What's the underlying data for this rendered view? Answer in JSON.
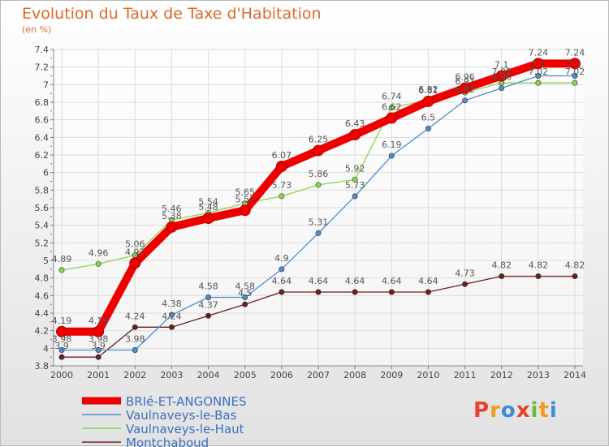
{
  "chart_data": {
    "type": "line",
    "title": "Evolution du Taux de Taxe d'Habitation",
    "unit_label": "(en %)",
    "x": [
      "2000",
      "2001",
      "2002",
      "2003",
      "2004",
      "2005",
      "2006",
      "2007",
      "2008",
      "2009",
      "2010",
      "2011",
      "2012",
      "2013",
      "2014"
    ],
    "ylim": [
      3.8,
      7.4
    ],
    "yticks": [
      "3.8",
      "4",
      "4.2",
      "4.4",
      "4.6",
      "4.8",
      "5",
      "5.2",
      "5.4",
      "5.6",
      "5.8",
      "6",
      "6.2",
      "6.4",
      "6.6",
      "6.8",
      "7",
      "7.2",
      "7.4"
    ],
    "grid": true,
    "legend_position": "bottom-left",
    "series": [
      {
        "name": "BRIé-ET-ANGONNES",
        "color": "#ee0000",
        "values": [
          4.19,
          4.19,
          4.97,
          5.38,
          5.48,
          5.57,
          6.07,
          6.25,
          6.43,
          6.62,
          6.81,
          6.96,
          7.1,
          7.24,
          7.24
        ],
        "labels": [
          "4.19",
          "4.19",
          "4.97",
          "5.38",
          "5.48",
          "5.57",
          "6.07",
          "6.25",
          "6.43",
          "6.62",
          "6.81",
          "6.96",
          "7.1",
          "7.24",
          "7.24"
        ]
      },
      {
        "name": "Vaulnaveys-le-Bas",
        "color": "#4f8cc9",
        "values": [
          3.98,
          3.98,
          3.98,
          4.38,
          4.58,
          4.58,
          4.9,
          5.31,
          5.73,
          6.19,
          6.5,
          6.82,
          6.96,
          7.1,
          7.1
        ],
        "labels": [
          "3.98",
          "3.98",
          "3.98",
          "4.38",
          "4.58",
          "4.58",
          "4.9",
          "5.31",
          "5.73",
          "6.19",
          "6.5",
          "6.82",
          "6.96",
          "7.1",
          "7.1"
        ]
      },
      {
        "name": "Vaulnaveys-le-Haut",
        "color": "#88d44e",
        "values": [
          4.89,
          4.96,
          5.06,
          5.46,
          5.54,
          5.65,
          5.73,
          5.86,
          5.92,
          6.74,
          6.82,
          6.91,
          7.02,
          7.02,
          7.02
        ],
        "labels": [
          "4.89",
          "4.96",
          "5.06",
          "5.46",
          "5.54",
          "5.65",
          "5.73",
          "5.86",
          "5.92",
          "6.74",
          "6.82",
          "6.91",
          "7.02",
          "7.02",
          "7.02"
        ]
      },
      {
        "name": "Montchaboud",
        "color": "#6b1f1f",
        "values": [
          3.9,
          3.9,
          4.24,
          4.24,
          4.37,
          4.5,
          4.64,
          4.64,
          4.64,
          4.64,
          4.64,
          4.73,
          4.82,
          4.82,
          4.82
        ],
        "labels": [
          "3.9",
          "3.9",
          "4.24",
          "4.24",
          "4.37",
          "4.5",
          "4.64",
          "4.64",
          "4.64",
          "4.64",
          "4.64",
          "4.73",
          "4.82",
          "4.82",
          "4.82"
        ]
      }
    ]
  },
  "logo": {
    "text": "Proxiti",
    "letters": [
      "P",
      "r",
      "o",
      "x",
      "i",
      "t",
      "i"
    ],
    "colors": [
      "#e8412c",
      "#f29a1d",
      "#3a8dd6",
      "#e8412c",
      "#6cbb3c",
      "#f29a1d",
      "#3a8dd6"
    ]
  }
}
